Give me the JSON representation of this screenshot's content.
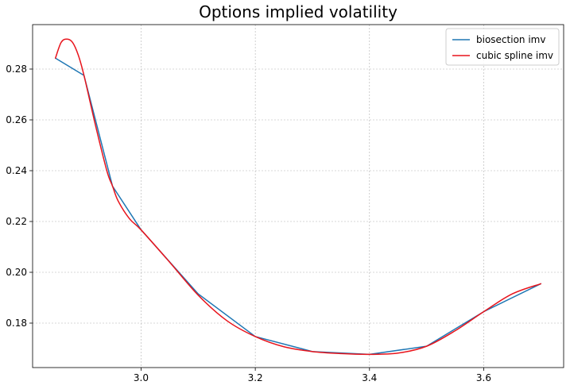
{
  "chart_data": {
    "type": "line",
    "title": "Options implied volatility",
    "xlabel": "",
    "ylabel": "",
    "xlim": [
      2.81,
      3.74
    ],
    "ylim": [
      0.1625,
      0.2975
    ],
    "grid": true,
    "legend_position": "top-right",
    "x_ticks": [
      3.0,
      3.2,
      3.4,
      3.6
    ],
    "x_tick_labels": [
      "3.0",
      "3.2",
      "3.4",
      "3.6"
    ],
    "y_ticks": [
      0.18,
      0.2,
      0.22,
      0.24,
      0.26,
      0.28
    ],
    "y_tick_labels": [
      "0.18",
      "0.20",
      "0.22",
      "0.24",
      "0.26",
      "0.28"
    ],
    "series": [
      {
        "name": "biosection imv",
        "color": "#1f77b4",
        "x": [
          2.85,
          2.9,
          2.95,
          3.0,
          3.1,
          3.2,
          3.3,
          3.4,
          3.5,
          3.6,
          3.7
        ],
        "y": [
          0.2843,
          0.2775,
          0.2339,
          0.2167,
          0.1915,
          0.1747,
          0.1688,
          0.1677,
          0.1709,
          0.1845,
          0.1955
        ]
      },
      {
        "name": "cubic spline imv",
        "color": "#e8141c",
        "x": [
          2.85,
          2.86,
          2.87,
          2.88,
          2.89,
          2.9,
          2.92,
          2.94,
          2.95,
          2.96,
          2.98,
          3.0,
          3.05,
          3.1,
          3.15,
          3.2,
          3.25,
          3.3,
          3.35,
          3.4,
          3.45,
          3.5,
          3.55,
          3.6,
          3.65,
          3.7
        ],
        "y": [
          0.2843,
          0.2905,
          0.2918,
          0.2905,
          0.2855,
          0.2775,
          0.258,
          0.24,
          0.2339,
          0.228,
          0.221,
          0.2167,
          0.204,
          0.191,
          0.181,
          0.1747,
          0.1707,
          0.1688,
          0.168,
          0.1677,
          0.1682,
          0.1709,
          0.177,
          0.1845,
          0.1915,
          0.1955
        ]
      }
    ]
  }
}
